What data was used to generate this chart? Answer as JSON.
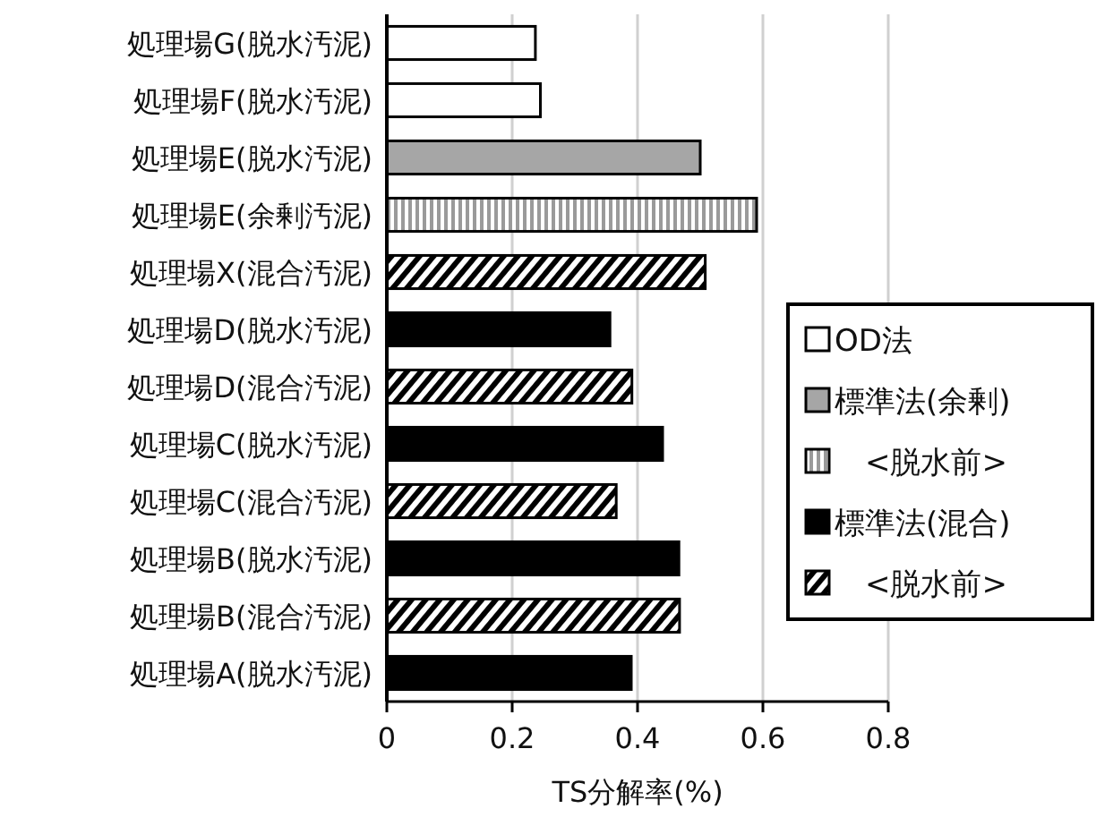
{
  "chart_data": {
    "type": "bar",
    "orientation": "horizontal",
    "xlabel": "TS分解率(%)",
    "categories": [
      "処理場G(脱水汚泥)",
      "処理場F(脱水汚泥)",
      "処理場E(脱水汚泥)",
      "処理場E(余剰汚泥)",
      "処理場X(混合汚泥)",
      "処理場D(脱水汚泥)",
      "処理場D(混合汚泥)",
      "処理場C(脱水汚泥)",
      "処理場C(混合汚泥)",
      "処理場B(脱水汚泥)",
      "処理場B(混合汚泥)",
      "処理場A(脱水汚泥)"
    ],
    "series": [
      {
        "name": "OD法",
        "color": "#ffffff",
        "values": [
          0.237,
          0.245,
          null,
          null,
          null,
          null,
          null,
          null,
          null,
          null,
          null,
          null
        ]
      },
      {
        "name": "標準法(余剰)",
        "color": "#a6a6a6",
        "values": [
          null,
          null,
          0.5,
          null,
          null,
          null,
          null,
          null,
          null,
          null,
          null,
          null
        ]
      },
      {
        "name": "　<脱水前>",
        "color": "#000000",
        "values": [
          null,
          null,
          null,
          0.59,
          null,
          null,
          null,
          null,
          null,
          null,
          null,
          null
        ]
      },
      {
        "name": "標準法(混合)",
        "color": "#000000",
        "values": [
          null,
          null,
          null,
          null,
          null,
          0.356,
          null,
          0.44,
          null,
          0.466,
          null,
          0.39
        ]
      },
      {
        "name": "　<脱水前>",
        "color": "#000000",
        "values": [
          null,
          null,
          null,
          null,
          0.508,
          null,
          0.391,
          null,
          0.366,
          null,
          0.467,
          null
        ]
      }
    ],
    "xlim": [
      0,
      0.8
    ],
    "xticks": [
      0,
      0.2,
      0.4,
      0.6,
      0.8
    ],
    "grid": "x",
    "legend": "right"
  }
}
